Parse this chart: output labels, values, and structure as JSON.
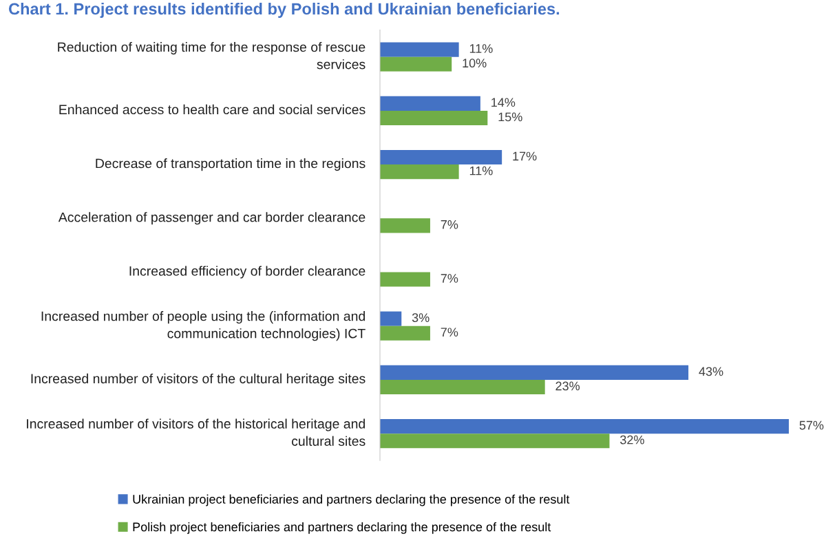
{
  "chart_data": {
    "type": "bar",
    "orientation": "horizontal",
    "title": "Chart 1. Project results identified by Polish and Ukrainian beneficiaries.",
    "categories": [
      "Reduction of waiting time for the response of rescue services",
      "Enhanced access to health care and social services",
      "Decrease of transportation time in the regions",
      "Acceleration of passenger and car border clearance",
      "Increased efficiency of border clearance",
      "Increased number of people using the (information and communication technologies) ICT",
      "Increased number of visitors of the cultural heritage sites",
      "Increased number of visitors of the historical heritage and cultural sites"
    ],
    "series": [
      {
        "name": "Ukrainian project beneficiaries and partners declaring the presence of the result",
        "color": "#4472c4",
        "values": [
          11,
          14,
          17,
          null,
          null,
          3,
          43,
          57
        ],
        "value_labels": [
          "11%",
          "14%",
          "17%",
          null,
          null,
          "3%",
          "43%",
          "57%"
        ]
      },
      {
        "name": "Polish project beneficiaries and partners declaring the presence of the result",
        "color": "#70ad47",
        "values": [
          10,
          15,
          11,
          7,
          7,
          7,
          23,
          32
        ],
        "value_labels": [
          "10%",
          "15%",
          "11%",
          "7%",
          "7%",
          "7%",
          "23%",
          "32%"
        ]
      }
    ],
    "legend": "bottom",
    "grid": false
  }
}
